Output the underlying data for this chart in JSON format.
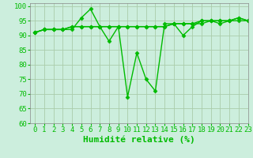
{
  "xlabel": "Humidité relative (%)",
  "background_color": "#cceedd",
  "grid_color": "#aaccaa",
  "line_color": "#00bb00",
  "xlim": [
    -0.5,
    23
  ],
  "ylim": [
    60,
    101
  ],
  "yticks": [
    60,
    65,
    70,
    75,
    80,
    85,
    90,
    95,
    100
  ],
  "xticks": [
    0,
    1,
    2,
    3,
    4,
    5,
    6,
    7,
    8,
    9,
    10,
    11,
    12,
    13,
    14,
    15,
    16,
    17,
    18,
    19,
    20,
    21,
    22,
    23
  ],
  "series": [
    [
      91,
      92,
      92,
      92,
      92,
      96,
      99,
      93,
      88,
      93,
      69,
      84,
      75,
      71,
      94,
      94,
      90,
      93,
      95,
      95,
      94,
      95,
      96,
      95
    ],
    [
      91,
      92,
      92,
      92,
      93,
      93,
      93,
      93,
      93,
      93,
      93,
      93,
      93,
      93,
      93,
      94,
      94,
      94,
      95,
      95,
      95,
      95,
      95,
      95
    ],
    [
      91,
      92,
      92,
      92,
      93,
      93,
      93,
      93,
      93,
      93,
      93,
      93,
      93,
      93,
      93,
      94,
      94,
      94,
      94,
      95,
      95,
      95,
      96,
      95
    ]
  ],
  "marker": "D",
  "marker_size": 2.5,
  "line_width": 1.0,
  "xlabel_fontsize": 8,
  "tick_fontsize": 6.5
}
